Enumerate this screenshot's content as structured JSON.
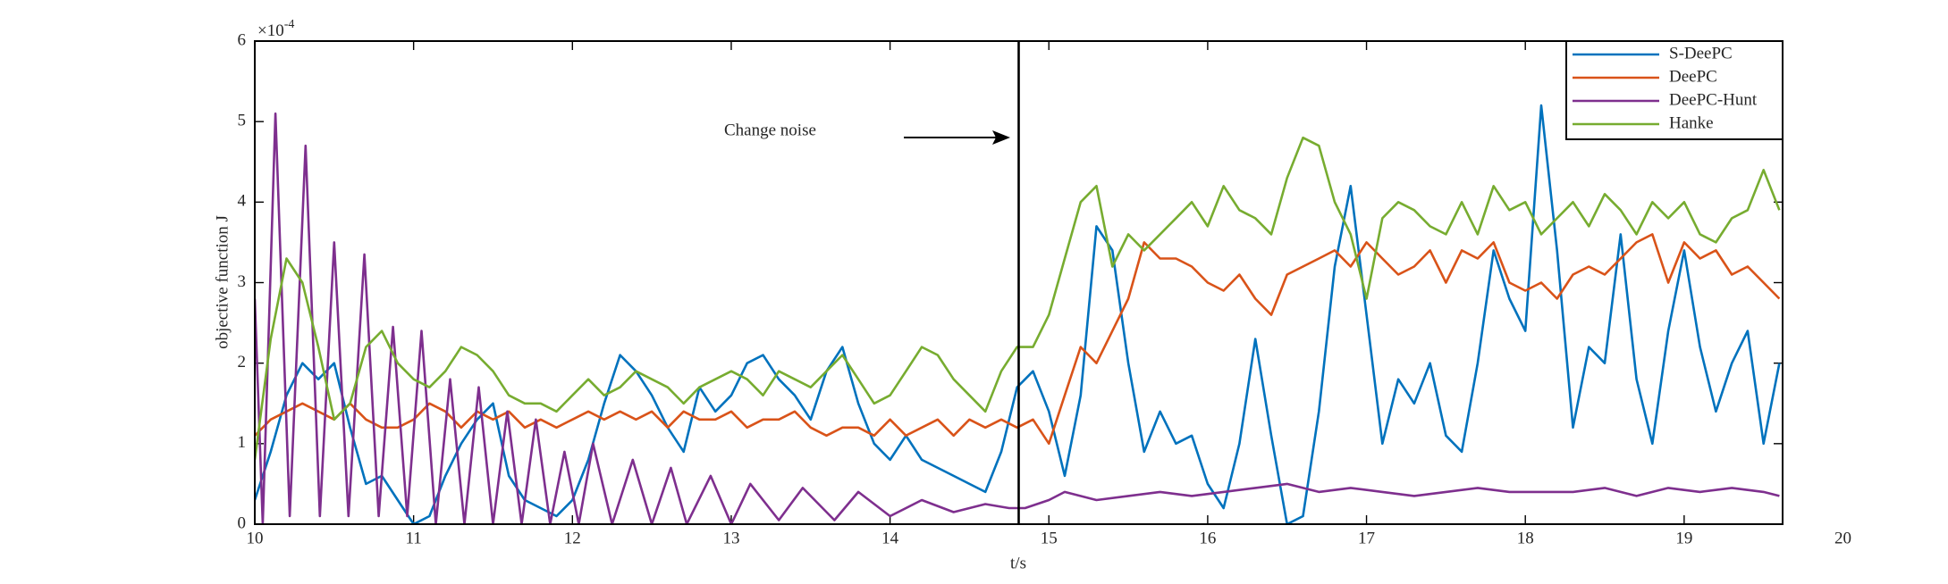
{
  "chart_data": {
    "type": "line",
    "xlabel": "t/s",
    "ylabel": "objective function J",
    "y_multiplier": "×10",
    "y_multiplier_exponent": "-4",
    "xlim": [
      10,
      19.62
    ],
    "ylim": [
      0,
      6
    ],
    "xticks": [
      10,
      11,
      12,
      13,
      14,
      15,
      16,
      17,
      18,
      19,
      20
    ],
    "yticks": [
      0,
      1,
      2,
      3,
      4,
      5,
      6
    ],
    "grid": false,
    "legend_position": "upper right",
    "vline": 14.81,
    "annotation": "Change noise",
    "series": [
      {
        "name": "S-DeePC",
        "color": "#0072BD",
        "x": [
          10.0,
          10.1,
          10.2,
          10.3,
          10.4,
          10.5,
          10.6,
          10.7,
          10.8,
          10.9,
          11.0,
          11.1,
          11.2,
          11.3,
          11.4,
          11.5,
          11.6,
          11.7,
          11.8,
          11.9,
          12.0,
          12.1,
          12.2,
          12.3,
          12.4,
          12.5,
          12.6,
          12.7,
          12.8,
          12.9,
          13.0,
          13.1,
          13.2,
          13.3,
          13.4,
          13.5,
          13.6,
          13.7,
          13.8,
          13.9,
          14.0,
          14.1,
          14.2,
          14.3,
          14.4,
          14.5,
          14.6,
          14.7,
          14.8,
          14.9,
          15.0,
          15.1,
          15.2,
          15.3,
          15.4,
          15.5,
          15.6,
          15.7,
          15.8,
          15.9,
          16.0,
          16.1,
          16.2,
          16.3,
          16.4,
          16.5,
          16.6,
          16.7,
          16.8,
          16.9,
          17.0,
          17.1,
          17.2,
          17.3,
          17.4,
          17.5,
          17.6,
          17.7,
          17.8,
          17.9,
          18.0,
          18.1,
          18.2,
          18.3,
          18.4,
          18.5,
          18.6,
          18.7,
          18.8,
          18.9,
          19.0,
          19.1,
          19.2,
          19.3,
          19.4,
          19.5,
          19.6
        ],
        "values": [
          0.3,
          0.9,
          1.6,
          2.0,
          1.8,
          2.0,
          1.2,
          0.5,
          0.6,
          0.3,
          0.0,
          0.1,
          0.6,
          1.0,
          1.3,
          1.5,
          0.6,
          0.3,
          0.2,
          0.1,
          0.3,
          0.8,
          1.5,
          2.1,
          1.9,
          1.6,
          1.2,
          0.9,
          1.7,
          1.4,
          1.6,
          2.0,
          2.1,
          1.8,
          1.6,
          1.3,
          1.9,
          2.2,
          1.5,
          1.0,
          0.8,
          1.1,
          0.8,
          0.7,
          0.6,
          0.5,
          0.4,
          0.9,
          1.7,
          1.9,
          1.4,
          0.6,
          1.6,
          3.7,
          3.4,
          2.0,
          0.9,
          1.4,
          1.0,
          1.1,
          0.5,
          0.2,
          1.0,
          2.3,
          1.1,
          0.0,
          0.1,
          1.4,
          3.2,
          4.2,
          2.6,
          1.0,
          1.8,
          1.5,
          2.0,
          1.1,
          0.9,
          2.0,
          3.4,
          2.8,
          2.4,
          5.2,
          3.4,
          1.2,
          2.2,
          2.0,
          3.6,
          1.8,
          1.0,
          2.4,
          3.4,
          2.2,
          1.4,
          2.0,
          2.4,
          1.0,
          2.0
        ]
      },
      {
        "name": "DeePC",
        "color": "#D95319",
        "x": [
          10.0,
          10.1,
          10.2,
          10.3,
          10.4,
          10.5,
          10.6,
          10.7,
          10.8,
          10.9,
          11.0,
          11.1,
          11.2,
          11.3,
          11.4,
          11.5,
          11.6,
          11.7,
          11.8,
          11.9,
          12.0,
          12.1,
          12.2,
          12.3,
          12.4,
          12.5,
          12.6,
          12.7,
          12.8,
          12.9,
          13.0,
          13.1,
          13.2,
          13.3,
          13.4,
          13.5,
          13.6,
          13.7,
          13.8,
          13.9,
          14.0,
          14.1,
          14.2,
          14.3,
          14.4,
          14.5,
          14.6,
          14.7,
          14.8,
          14.9,
          15.0,
          15.1,
          15.2,
          15.3,
          15.4,
          15.5,
          15.6,
          15.7,
          15.8,
          15.9,
          16.0,
          16.1,
          16.2,
          16.3,
          16.4,
          16.5,
          16.6,
          16.7,
          16.8,
          16.9,
          17.0,
          17.1,
          17.2,
          17.3,
          17.4,
          17.5,
          17.6,
          17.7,
          17.8,
          17.9,
          18.0,
          18.1,
          18.2,
          18.3,
          18.4,
          18.5,
          18.6,
          18.7,
          18.8,
          18.9,
          19.0,
          19.1,
          19.2,
          19.3,
          19.4,
          19.5,
          19.6
        ],
        "values": [
          1.1,
          1.3,
          1.4,
          1.5,
          1.4,
          1.3,
          1.5,
          1.3,
          1.2,
          1.2,
          1.3,
          1.5,
          1.4,
          1.2,
          1.4,
          1.3,
          1.4,
          1.2,
          1.3,
          1.2,
          1.3,
          1.4,
          1.3,
          1.4,
          1.3,
          1.4,
          1.2,
          1.4,
          1.3,
          1.3,
          1.4,
          1.2,
          1.3,
          1.3,
          1.4,
          1.2,
          1.1,
          1.2,
          1.2,
          1.1,
          1.3,
          1.1,
          1.2,
          1.3,
          1.1,
          1.3,
          1.2,
          1.3,
          1.2,
          1.3,
          1.0,
          1.6,
          2.2,
          2.0,
          2.4,
          2.8,
          3.5,
          3.3,
          3.3,
          3.2,
          3.0,
          2.9,
          3.1,
          2.8,
          2.6,
          3.1,
          3.2,
          3.3,
          3.4,
          3.2,
          3.5,
          3.3,
          3.1,
          3.2,
          3.4,
          3.0,
          3.4,
          3.3,
          3.5,
          3.0,
          2.9,
          3.0,
          2.8,
          3.1,
          3.2,
          3.1,
          3.3,
          3.5,
          3.6,
          3.0,
          3.5,
          3.3,
          3.4,
          3.1,
          3.2,
          3.0,
          2.8
        ]
      },
      {
        "name": "DeePC-Hunt",
        "color": "#7E2F8E",
        "x": [
          10.0,
          10.05,
          10.13,
          10.22,
          10.32,
          10.41,
          10.5,
          10.59,
          10.69,
          10.78,
          10.87,
          10.96,
          11.05,
          11.14,
          11.23,
          11.32,
          11.41,
          11.5,
          11.59,
          11.68,
          11.77,
          11.86,
          11.95,
          12.04,
          12.13,
          12.25,
          12.38,
          12.5,
          12.62,
          12.72,
          12.87,
          13.0,
          13.12,
          13.3,
          13.45,
          13.65,
          13.8,
          14.0,
          14.2,
          14.4,
          14.6,
          14.75,
          14.85,
          15.0,
          15.1,
          15.3,
          15.5,
          15.7,
          15.9,
          16.1,
          16.3,
          16.5,
          16.7,
          16.9,
          17.1,
          17.3,
          17.5,
          17.7,
          17.9,
          18.1,
          18.3,
          18.5,
          18.7,
          18.9,
          19.1,
          19.3,
          19.5,
          19.6
        ],
        "values": [
          2.8,
          0.0,
          5.1,
          0.1,
          4.7,
          0.1,
          3.5,
          0.1,
          3.35,
          0.1,
          2.45,
          0.1,
          2.4,
          0.0,
          1.8,
          0.0,
          1.7,
          0.0,
          1.4,
          0.0,
          1.3,
          0.0,
          0.9,
          0.0,
          1.0,
          0.0,
          0.8,
          0.0,
          0.7,
          0.0,
          0.6,
          0.0,
          0.5,
          0.05,
          0.45,
          0.05,
          0.4,
          0.1,
          0.3,
          0.15,
          0.25,
          0.2,
          0.2,
          0.3,
          0.4,
          0.3,
          0.35,
          0.4,
          0.35,
          0.4,
          0.45,
          0.5,
          0.4,
          0.45,
          0.4,
          0.35,
          0.4,
          0.45,
          0.4,
          0.4,
          0.4,
          0.45,
          0.35,
          0.45,
          0.4,
          0.45,
          0.4,
          0.35
        ]
      },
      {
        "name": "Hanke",
        "color": "#77AC30",
        "x": [
          10.0,
          10.1,
          10.2,
          10.3,
          10.4,
          10.5,
          10.6,
          10.7,
          10.8,
          10.9,
          11.0,
          11.1,
          11.2,
          11.3,
          11.4,
          11.5,
          11.6,
          11.7,
          11.8,
          11.9,
          12.0,
          12.1,
          12.2,
          12.3,
          12.4,
          12.5,
          12.6,
          12.7,
          12.8,
          12.9,
          13.0,
          13.1,
          13.2,
          13.3,
          13.4,
          13.5,
          13.6,
          13.7,
          13.8,
          13.9,
          14.0,
          14.1,
          14.2,
          14.3,
          14.4,
          14.5,
          14.6,
          14.7,
          14.8,
          14.9,
          15.0,
          15.1,
          15.2,
          15.3,
          15.4,
          15.5,
          15.6,
          15.7,
          15.8,
          15.9,
          16.0,
          16.1,
          16.2,
          16.3,
          16.4,
          16.5,
          16.6,
          16.7,
          16.8,
          16.9,
          17.0,
          17.1,
          17.2,
          17.3,
          17.4,
          17.5,
          17.6,
          17.7,
          17.8,
          17.9,
          18.0,
          18.1,
          18.2,
          18.3,
          18.4,
          18.5,
          18.6,
          18.7,
          18.8,
          18.9,
          19.0,
          19.1,
          19.2,
          19.3,
          19.4,
          19.5,
          19.6
        ],
        "values": [
          0.8,
          2.3,
          3.3,
          3.0,
          2.2,
          1.3,
          1.5,
          2.2,
          2.4,
          2.0,
          1.8,
          1.7,
          1.9,
          2.2,
          2.1,
          1.9,
          1.6,
          1.5,
          1.5,
          1.4,
          1.6,
          1.8,
          1.6,
          1.7,
          1.9,
          1.8,
          1.7,
          1.5,
          1.7,
          1.8,
          1.9,
          1.8,
          1.6,
          1.9,
          1.8,
          1.7,
          1.9,
          2.1,
          1.8,
          1.5,
          1.6,
          1.9,
          2.2,
          2.1,
          1.8,
          1.6,
          1.4,
          1.9,
          2.2,
          2.2,
          2.6,
          3.3,
          4.0,
          4.2,
          3.2,
          3.6,
          3.4,
          3.6,
          3.8,
          4.0,
          3.7,
          4.2,
          3.9,
          3.8,
          3.6,
          4.3,
          4.8,
          4.7,
          4.0,
          3.6,
          2.8,
          3.8,
          4.0,
          3.9,
          3.7,
          3.6,
          4.0,
          3.6,
          4.2,
          3.9,
          4.0,
          3.6,
          3.8,
          4.0,
          3.7,
          4.1,
          3.9,
          3.6,
          4.0,
          3.8,
          4.0,
          3.6,
          3.5,
          3.8,
          3.9,
          4.4,
          3.9
        ]
      }
    ]
  }
}
